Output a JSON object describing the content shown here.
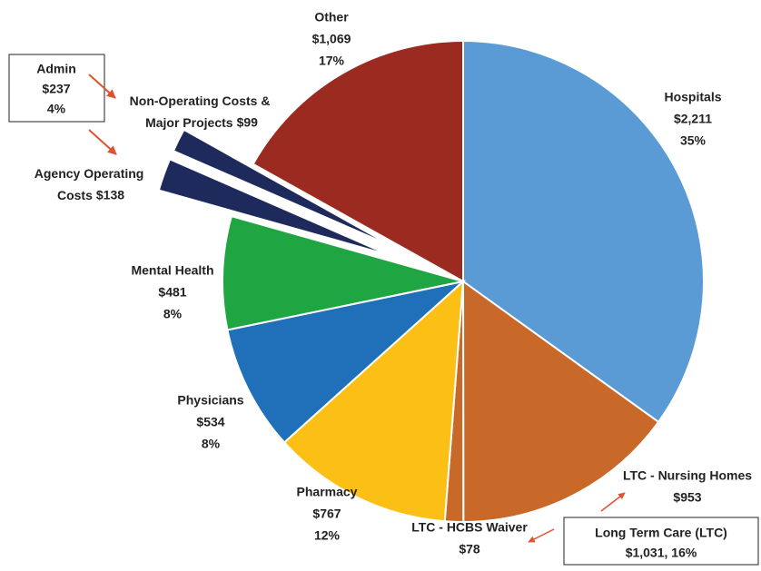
{
  "chart_data": {
    "type": "pie",
    "categories": [
      "Hospitals",
      "LTC - Nursing Homes",
      "LTC - HCBS Waiver",
      "Pharmacy",
      "Physicians",
      "Mental Health",
      "Agency Operating Costs",
      "Non-Operating Costs & Major Projects",
      "Other"
    ],
    "values": [
      2211,
      953,
      78,
      767,
      534,
      481,
      138,
      99,
      1069
    ],
    "value_labels": [
      "$2,211",
      "$953",
      "$78",
      "$767",
      "$534",
      "$481",
      "$138",
      "$99",
      "$1,069"
    ],
    "percents": [
      35,
      null,
      null,
      12,
      8,
      8,
      null,
      null,
      17
    ],
    "percent_labels": [
      "35%",
      null,
      null,
      "12%",
      "8%",
      "8%",
      null,
      null,
      "17%"
    ],
    "colors": [
      "#5b9bd5",
      "#c8692a",
      "#c8692a",
      "#fbbf16",
      "#1f6fb9",
      "#1fa541",
      "#1f2a5c",
      "#1f2a5c",
      "#9b2b20"
    ],
    "annotations": [
      {
        "lines": [
          "Admin",
          "$237",
          "4%"
        ]
      },
      {
        "lines": [
          "Long Term Care (LTC)",
          "$1,031, 16%"
        ]
      }
    ]
  }
}
